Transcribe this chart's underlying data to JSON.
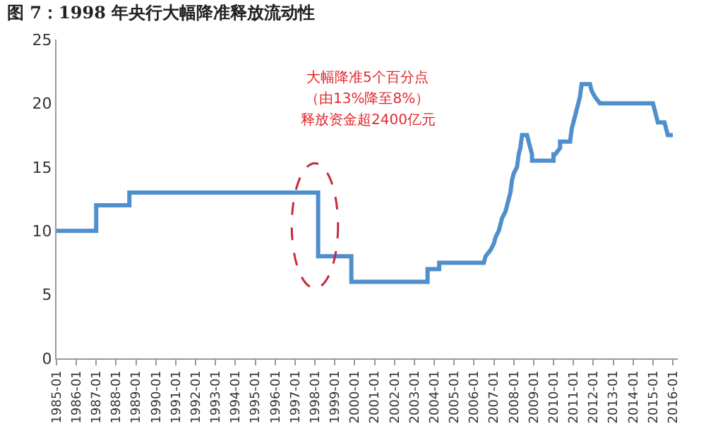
{
  "chart_data": {
    "type": "line",
    "title": "图 7：1998 年央行大幅降准释放流动性",
    "x": [
      "1985-01",
      "1987-01",
      "1987-01",
      "1988-09",
      "1988-09",
      "1998-03",
      "1998-03",
      "1999-11",
      "1999-11",
      "2003-09",
      "2003-09",
      "2004-04",
      "2004-04",
      "2006-07",
      "2006-08",
      "2006-11",
      "2007-01",
      "2007-02",
      "2007-04",
      "2007-05",
      "2007-06",
      "2007-08",
      "2007-09",
      "2007-10",
      "2007-11",
      "2007-12",
      "2008-01",
      "2008-03",
      "2008-04",
      "2008-05",
      "2008-06",
      "2008-09",
      "2008-10",
      "2008-12",
      "2008-12",
      "2010-01",
      "2010-01",
      "2010-02",
      "2010-05",
      "2010-05",
      "2010-11",
      "2010-12",
      "2011-01",
      "2011-02",
      "2011-03",
      "2011-04",
      "2011-05",
      "2011-06",
      "2011-11",
      "2011-12",
      "2012-02",
      "2012-05",
      "2015-01",
      "2015-02",
      "2015-04",
      "2015-08",
      "2015-10",
      "2016-01"
    ],
    "series": [
      {
        "color": "#4f8fcc",
        "values": [
          10,
          10,
          12,
          12,
          13,
          13,
          8,
          8,
          6,
          6,
          7,
          7,
          7.5,
          7.5,
          8,
          8.5,
          9,
          9.5,
          10,
          10.5,
          11,
          11.5,
          12,
          12.5,
          13,
          14,
          14.5,
          15,
          16,
          16.5,
          17.5,
          17.5,
          17,
          16,
          15.5,
          15.5,
          16,
          16,
          16.5,
          17,
          17,
          18,
          18.5,
          19,
          19.5,
          20,
          20.5,
          21.5,
          21.5,
          21,
          20.5,
          20,
          20,
          19.5,
          18.5,
          18.5,
          17.5,
          17.5
        ]
      }
    ],
    "xlim": [
      "1985-01",
      "2016-04"
    ],
    "xticks": [
      "1985-01",
      "1986-01",
      "1987-01",
      "1988-01",
      "1989-01",
      "1990-01",
      "1991-01",
      "1992-01",
      "1993-01",
      "1994-01",
      "1995-01",
      "1996-01",
      "1997-01",
      "1998-01",
      "1999-01",
      "2000-01",
      "2001-01",
      "2002-01",
      "2003-01",
      "2004-01",
      "2005-01",
      "2006-01",
      "2007-01",
      "2008-01",
      "2009-01",
      "2010-01",
      "2011-01",
      "2012-01",
      "2013-01",
      "2014-01",
      "2015-01",
      "2016-01"
    ],
    "ylim": [
      0,
      25
    ],
    "yticks": [
      0,
      5,
      10,
      15,
      20,
      25
    ],
    "annotations": [
      "大幅降准5个百分点",
      "（由13%降至8%）",
      "释放资金超2400亿元"
    ],
    "marker": "none",
    "line_style": "solid"
  }
}
